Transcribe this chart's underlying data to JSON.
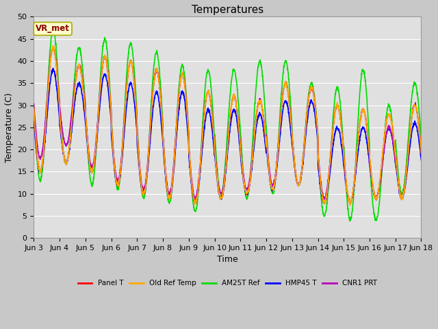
{
  "title": "Temperatures",
  "xlabel": "Time",
  "ylabel": "Temperature (C)",
  "annotation": "VR_met",
  "ylim": [
    0,
    50
  ],
  "xtick_labels": [
    "Jun 3",
    "Jun 4",
    "Jun 5",
    "Jun 6",
    "Jun 7",
    "Jun 8",
    "Jun 9",
    "Jun 10",
    "Jun 11",
    "Jun 12",
    "Jun 13",
    "Jun 14",
    "Jun 15",
    "Jun 16",
    "Jun 17",
    "Jun 18"
  ],
  "legend_labels": [
    "Panel T",
    "Old Ref Temp",
    "AM25T Ref",
    "HMP45 T",
    "CNR1 PRT"
  ],
  "legend_colors": [
    "#ff0000",
    "#ffaa00",
    "#00dd00",
    "#0000ff",
    "#bb00bb"
  ],
  "title_fontsize": 11,
  "axis_fontsize": 9,
  "tick_fontsize": 8,
  "line_width": 1.2,
  "num_days": 15,
  "panel_peaks": [
    43,
    39,
    41,
    40,
    38,
    37,
    33,
    32,
    31,
    35,
    34,
    30,
    29,
    28,
    30
  ],
  "panel_troughs": [
    15,
    17,
    15,
    12,
    10,
    9,
    8,
    9,
    10,
    11,
    12,
    8,
    8,
    9,
    9
  ],
  "am25t_peaks": [
    47,
    43,
    45,
    44,
    42,
    39,
    38,
    38,
    40,
    40,
    35,
    34,
    38,
    30,
    35
  ],
  "am25t_troughs": [
    13,
    17,
    12,
    11,
    9,
    8,
    6,
    10,
    9,
    10,
    12,
    5,
    4,
    4,
    10
  ],
  "hmp45_peaks": [
    38,
    35,
    37,
    35,
    33,
    33,
    29,
    29,
    28,
    31,
    31,
    25,
    25,
    25,
    26
  ],
  "hmp45_troughs": [
    15,
    17,
    15,
    12,
    10,
    9,
    8,
    9,
    10,
    11,
    12,
    8,
    8,
    9,
    9
  ],
  "cnr1_peaks": [
    43,
    39,
    41,
    40,
    38,
    37,
    33,
    32,
    31,
    35,
    34,
    30,
    29,
    25,
    30
  ],
  "cnr1_troughs": [
    18,
    21,
    16,
    13,
    11,
    10,
    9,
    10,
    11,
    12,
    12,
    9,
    8,
    9,
    9
  ]
}
